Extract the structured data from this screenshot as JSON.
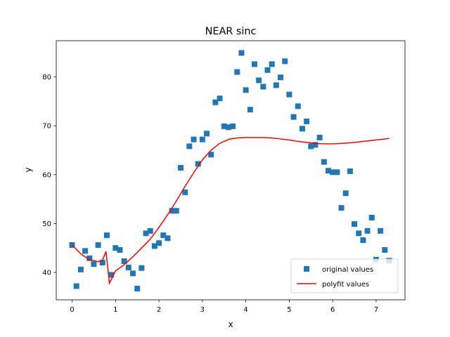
{
  "chart_data": {
    "type": "scatter",
    "title": "NEAR sinc",
    "xlabel": "x",
    "ylabel": "y",
    "xlim": [
      -0.365,
      7.665
    ],
    "ylim": [
      34.4,
      87.4
    ],
    "xticks": [
      0,
      1,
      2,
      3,
      4,
      5,
      6,
      7
    ],
    "yticks": [
      40,
      50,
      60,
      70,
      80
    ],
    "grid": false,
    "legend": {
      "placement": "lower right"
    },
    "series": [
      {
        "name": "original values",
        "kind": "scatter",
        "marker": "square",
        "color": "#1f77b4",
        "points": [
          [
            0.0,
            45.6
          ],
          [
            0.1,
            37.2
          ],
          [
            0.2,
            40.6
          ],
          [
            0.3,
            44.4
          ],
          [
            0.4,
            42.9
          ],
          [
            0.5,
            41.7
          ],
          [
            0.6,
            45.6
          ],
          [
            0.7,
            42.0
          ],
          [
            0.8,
            47.6
          ],
          [
            0.9,
            39.5
          ],
          [
            1.0,
            45.0
          ],
          [
            1.1,
            44.6
          ],
          [
            1.2,
            42.3
          ],
          [
            1.3,
            41.0
          ],
          [
            1.4,
            39.8
          ],
          [
            1.5,
            36.7
          ],
          [
            1.6,
            40.9
          ],
          [
            1.7,
            48.0
          ],
          [
            1.8,
            48.5
          ],
          [
            1.9,
            45.4
          ],
          [
            2.0,
            46.0
          ],
          [
            2.1,
            47.6
          ],
          [
            2.2,
            47.0
          ],
          [
            2.3,
            52.6
          ],
          [
            2.4,
            52.6
          ],
          [
            2.5,
            61.4
          ],
          [
            2.6,
            56.4
          ],
          [
            2.7,
            65.8
          ],
          [
            2.8,
            67.2
          ],
          [
            2.9,
            62.2
          ],
          [
            3.0,
            67.2
          ],
          [
            3.1,
            68.4
          ],
          [
            3.2,
            64.1
          ],
          [
            3.3,
            74.8
          ],
          [
            3.4,
            75.6
          ],
          [
            3.5,
            69.9
          ],
          [
            3.6,
            69.7
          ],
          [
            3.7,
            69.9
          ],
          [
            3.8,
            81.0
          ],
          [
            3.9,
            84.9
          ],
          [
            4.0,
            77.3
          ],
          [
            4.1,
            73.3
          ],
          [
            4.2,
            82.6
          ],
          [
            4.3,
            79.3
          ],
          [
            4.4,
            78.0
          ],
          [
            4.5,
            81.4
          ],
          [
            4.6,
            82.6
          ],
          [
            4.7,
            78.3
          ],
          [
            4.8,
            79.9
          ],
          [
            4.9,
            83.2
          ],
          [
            5.0,
            76.4
          ],
          [
            5.1,
            71.8
          ],
          [
            5.2,
            74.0
          ],
          [
            5.3,
            69.4
          ],
          [
            5.4,
            70.9
          ],
          [
            5.5,
            65.8
          ],
          [
            5.6,
            66.1
          ],
          [
            5.7,
            67.6
          ],
          [
            5.8,
            62.6
          ],
          [
            5.9,
            60.8
          ],
          [
            6.0,
            60.5
          ],
          [
            6.1,
            60.5
          ],
          [
            6.2,
            53.2
          ],
          [
            6.3,
            56.2
          ],
          [
            6.4,
            60.7
          ],
          [
            6.5,
            49.9
          ],
          [
            6.6,
            48.0
          ],
          [
            6.7,
            46.6
          ],
          [
            6.8,
            48.5
          ],
          [
            6.9,
            51.2
          ],
          [
            7.0,
            42.6
          ],
          [
            7.1,
            48.5
          ],
          [
            7.2,
            44.6
          ],
          [
            7.3,
            42.4
          ]
        ]
      },
      {
        "name": "polyfit values",
        "kind": "line",
        "color": "#ff0000",
        "points": [
          [
            0.0,
            45.6
          ],
          [
            0.2,
            43.8
          ],
          [
            0.4,
            42.6
          ],
          [
            0.6,
            42.2
          ],
          [
            0.7,
            42.5
          ],
          [
            0.78,
            44.3
          ],
          [
            0.86,
            37.8
          ],
          [
            1.0,
            40.3
          ],
          [
            1.2,
            41.6
          ],
          [
            1.4,
            43.2
          ],
          [
            1.6,
            45.0
          ],
          [
            1.8,
            46.8
          ],
          [
            2.0,
            49.2
          ],
          [
            2.2,
            51.8
          ],
          [
            2.4,
            54.6
          ],
          [
            2.6,
            57.6
          ],
          [
            2.8,
            60.4
          ],
          [
            3.0,
            63.0
          ],
          [
            3.2,
            65.0
          ],
          [
            3.4,
            66.4
          ],
          [
            3.6,
            67.2
          ],
          [
            3.8,
            67.5
          ],
          [
            4.0,
            67.6
          ],
          [
            4.2,
            67.6
          ],
          [
            4.4,
            67.6
          ],
          [
            4.6,
            67.5
          ],
          [
            4.8,
            67.3
          ],
          [
            5.0,
            67.1
          ],
          [
            5.2,
            66.8
          ],
          [
            5.4,
            66.6
          ],
          [
            5.6,
            66.4
          ],
          [
            5.8,
            66.3
          ],
          [
            6.0,
            66.3
          ],
          [
            6.2,
            66.4
          ],
          [
            6.4,
            66.5
          ],
          [
            6.6,
            66.7
          ],
          [
            6.8,
            66.9
          ],
          [
            7.0,
            67.1
          ],
          [
            7.3,
            67.4
          ]
        ]
      }
    ]
  }
}
